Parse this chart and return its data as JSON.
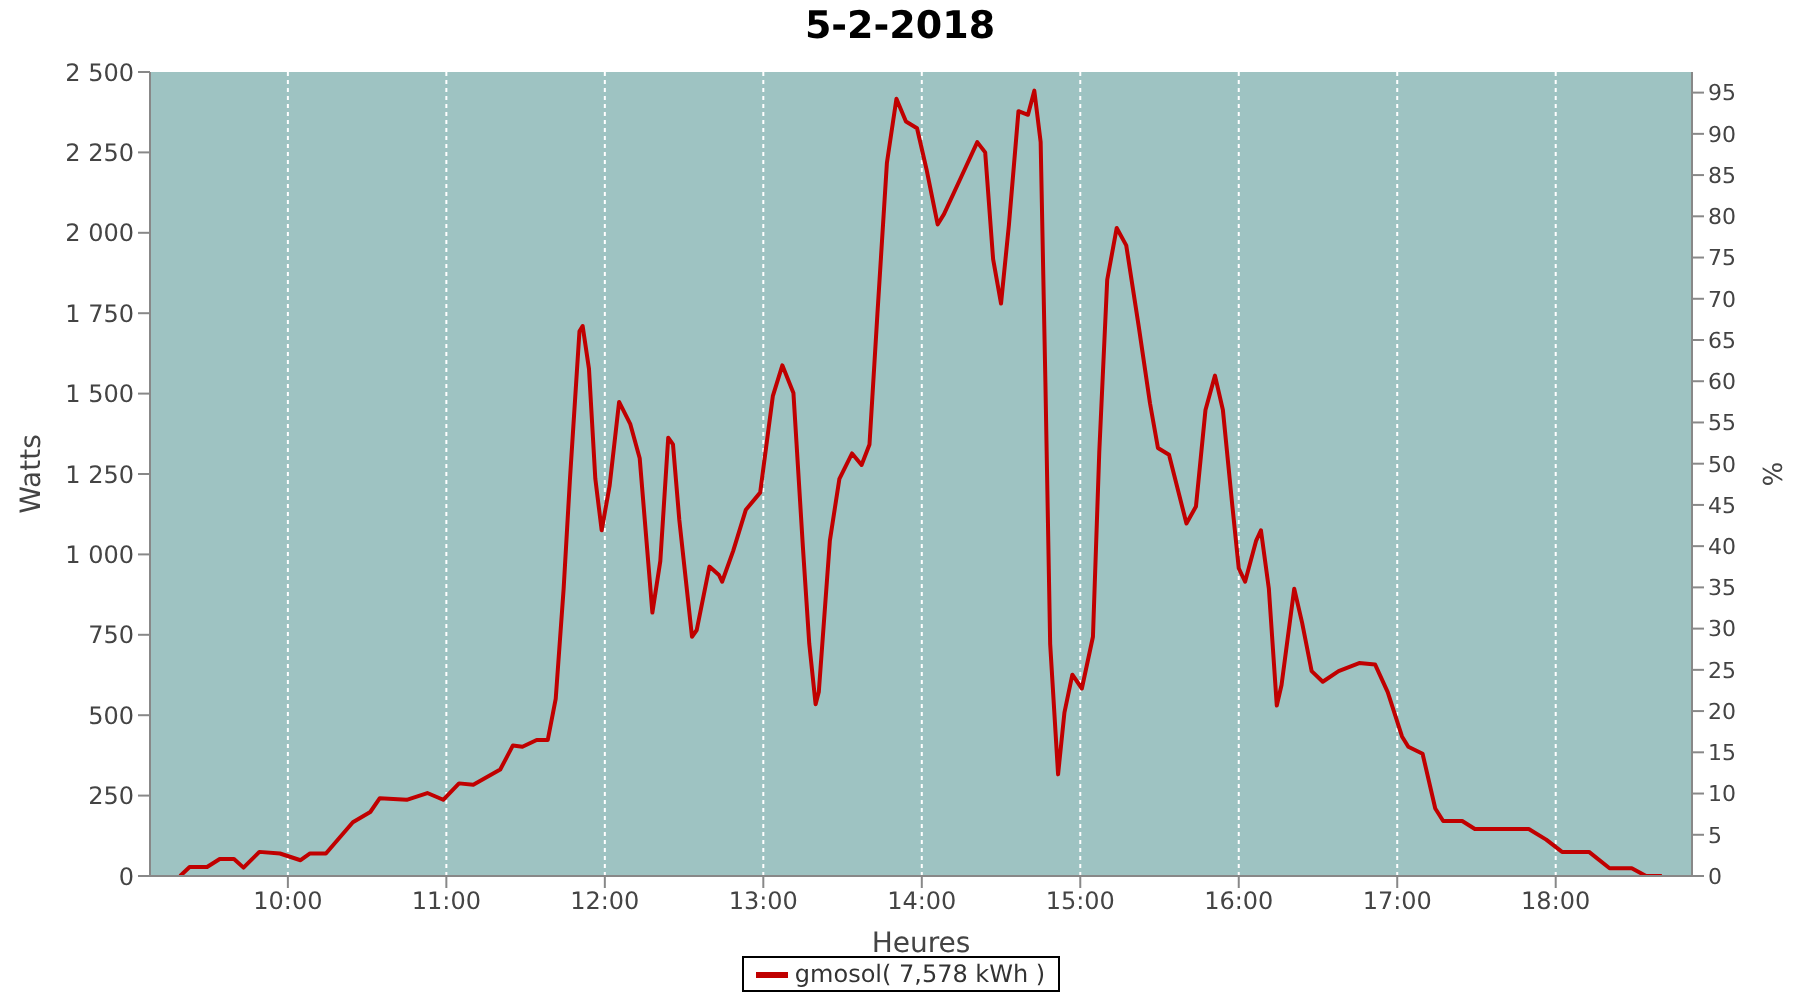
{
  "chart_data": {
    "type": "line",
    "title": "5-2-2018",
    "xlabel": "Heures",
    "ylabel": "Watts",
    "y2label": "%",
    "x": [
      9.32,
      9.38,
      9.49,
      9.57,
      9.66,
      9.72,
      9.82,
      9.95,
      10.08,
      10.14,
      10.24,
      10.41,
      10.52,
      10.58,
      10.75,
      10.88,
      10.98,
      11.08,
      11.17,
      11.34,
      11.42,
      11.48,
      11.57,
      11.64,
      11.69,
      11.74,
      11.78,
      11.84,
      11.86,
      11.9,
      11.94,
      11.98,
      12.03,
      12.09,
      12.16,
      12.22,
      12.3,
      12.35,
      12.4,
      12.43,
      12.47,
      12.55,
      12.58,
      12.66,
      12.72,
      12.74,
      12.81,
      12.89,
      12.98,
      13.06,
      13.12,
      13.19,
      13.25,
      13.29,
      13.33,
      13.35,
      13.42,
      13.48,
      13.56,
      13.62,
      13.67,
      13.72,
      13.78,
      13.84,
      13.9,
      13.97,
      14.03,
      14.1,
      14.14,
      14.25,
      14.35,
      14.4,
      14.45,
      14.5,
      14.55,
      14.61,
      14.67,
      14.71,
      14.75,
      14.78,
      14.81,
      14.86,
      14.9,
      14.95,
      15.01,
      15.08,
      15.12,
      15.17,
      15.23,
      15.29,
      15.37,
      15.44,
      15.49,
      15.56,
      15.67,
      15.73,
      15.79,
      15.85,
      15.9,
      15.96,
      16.0,
      16.04,
      16.11,
      16.14,
      16.19,
      16.24,
      16.27,
      16.35,
      16.4,
      16.46,
      16.53,
      16.63,
      16.76,
      16.86,
      16.94,
      17.03,
      17.07,
      17.16,
      17.24,
      17.29,
      17.41,
      17.49,
      17.83,
      17.94,
      18.04,
      18.21,
      18.34,
      18.48,
      18.57,
      18.67
    ],
    "series": [
      {
        "name": "gmosol( 7,578 kWh )",
        "color": "#c00000",
        "values": [
          0,
          28,
          28,
          53,
          53,
          26,
          75,
          70,
          49,
          70,
          70,
          167,
          199,
          242,
          237,
          258,
          237,
          288,
          284,
          331,
          406,
          402,
          423,
          423,
          551,
          893,
          1235,
          1694,
          1710,
          1577,
          1235,
          1075,
          1213,
          1474,
          1406,
          1299,
          819,
          979,
          1363,
          1342,
          1107,
          744,
          765,
          962,
          936,
          915,
          1011,
          1139,
          1192,
          1492,
          1588,
          1502,
          1021,
          722,
          534,
          572,
          1043,
          1235,
          1314,
          1278,
          1342,
          1748,
          2218,
          2417,
          2346,
          2325,
          2197,
          2026,
          2058,
          2175,
          2282,
          2250,
          1918,
          1780,
          2026,
          2378,
          2367,
          2442,
          2282,
          1534,
          722,
          316,
          508,
          626,
          583,
          744,
          1320,
          1854,
          2015,
          1961,
          1705,
          1470,
          1331,
          1310,
          1096,
          1149,
          1449,
          1556,
          1449,
          1149,
          957,
          915,
          1043,
          1075,
          893,
          530,
          594,
          893,
          787,
          637,
          604,
          637,
          662,
          658,
          572,
          434,
          402,
          380,
          210,
          171,
          171,
          146,
          146,
          113,
          75,
          75,
          24,
          24,
          0,
          0
        ]
      }
    ],
    "xlim": [
      9.13,
      18.86
    ],
    "xticks": [
      {
        "value": 10,
        "label": "10:00"
      },
      {
        "value": 11,
        "label": "11:00"
      },
      {
        "value": 12,
        "label": "12:00"
      },
      {
        "value": 13,
        "label": "13:00"
      },
      {
        "value": 14,
        "label": "14:00"
      },
      {
        "value": 15,
        "label": "15:00"
      },
      {
        "value": 16,
        "label": "16:00"
      },
      {
        "value": 17,
        "label": "17:00"
      },
      {
        "value": 18,
        "label": "18:00"
      }
    ],
    "ylim": [
      0,
      2500
    ],
    "yticks": [
      0,
      250,
      500,
      750,
      {
        "value": 1000,
        "label": "1 000"
      },
      {
        "value": 1250,
        "label": "1 250"
      },
      {
        "value": 1500,
        "label": "1 500"
      },
      {
        "value": 1750,
        "label": "1 750"
      },
      {
        "value": 2000,
        "label": "2 000"
      },
      {
        "value": 2250,
        "label": "2 250"
      },
      {
        "value": 2500,
        "label": "2 500"
      }
    ],
    "y2lim": [
      0,
      97.5
    ],
    "y2ticks": [
      0,
      5,
      10,
      15,
      20,
      25,
      30,
      35,
      40,
      45,
      50,
      55,
      60,
      65,
      70,
      75,
      80,
      85,
      90,
      95
    ],
    "grid": true,
    "legend": "bottom",
    "marker": "none",
    "line_style": "solid"
  }
}
